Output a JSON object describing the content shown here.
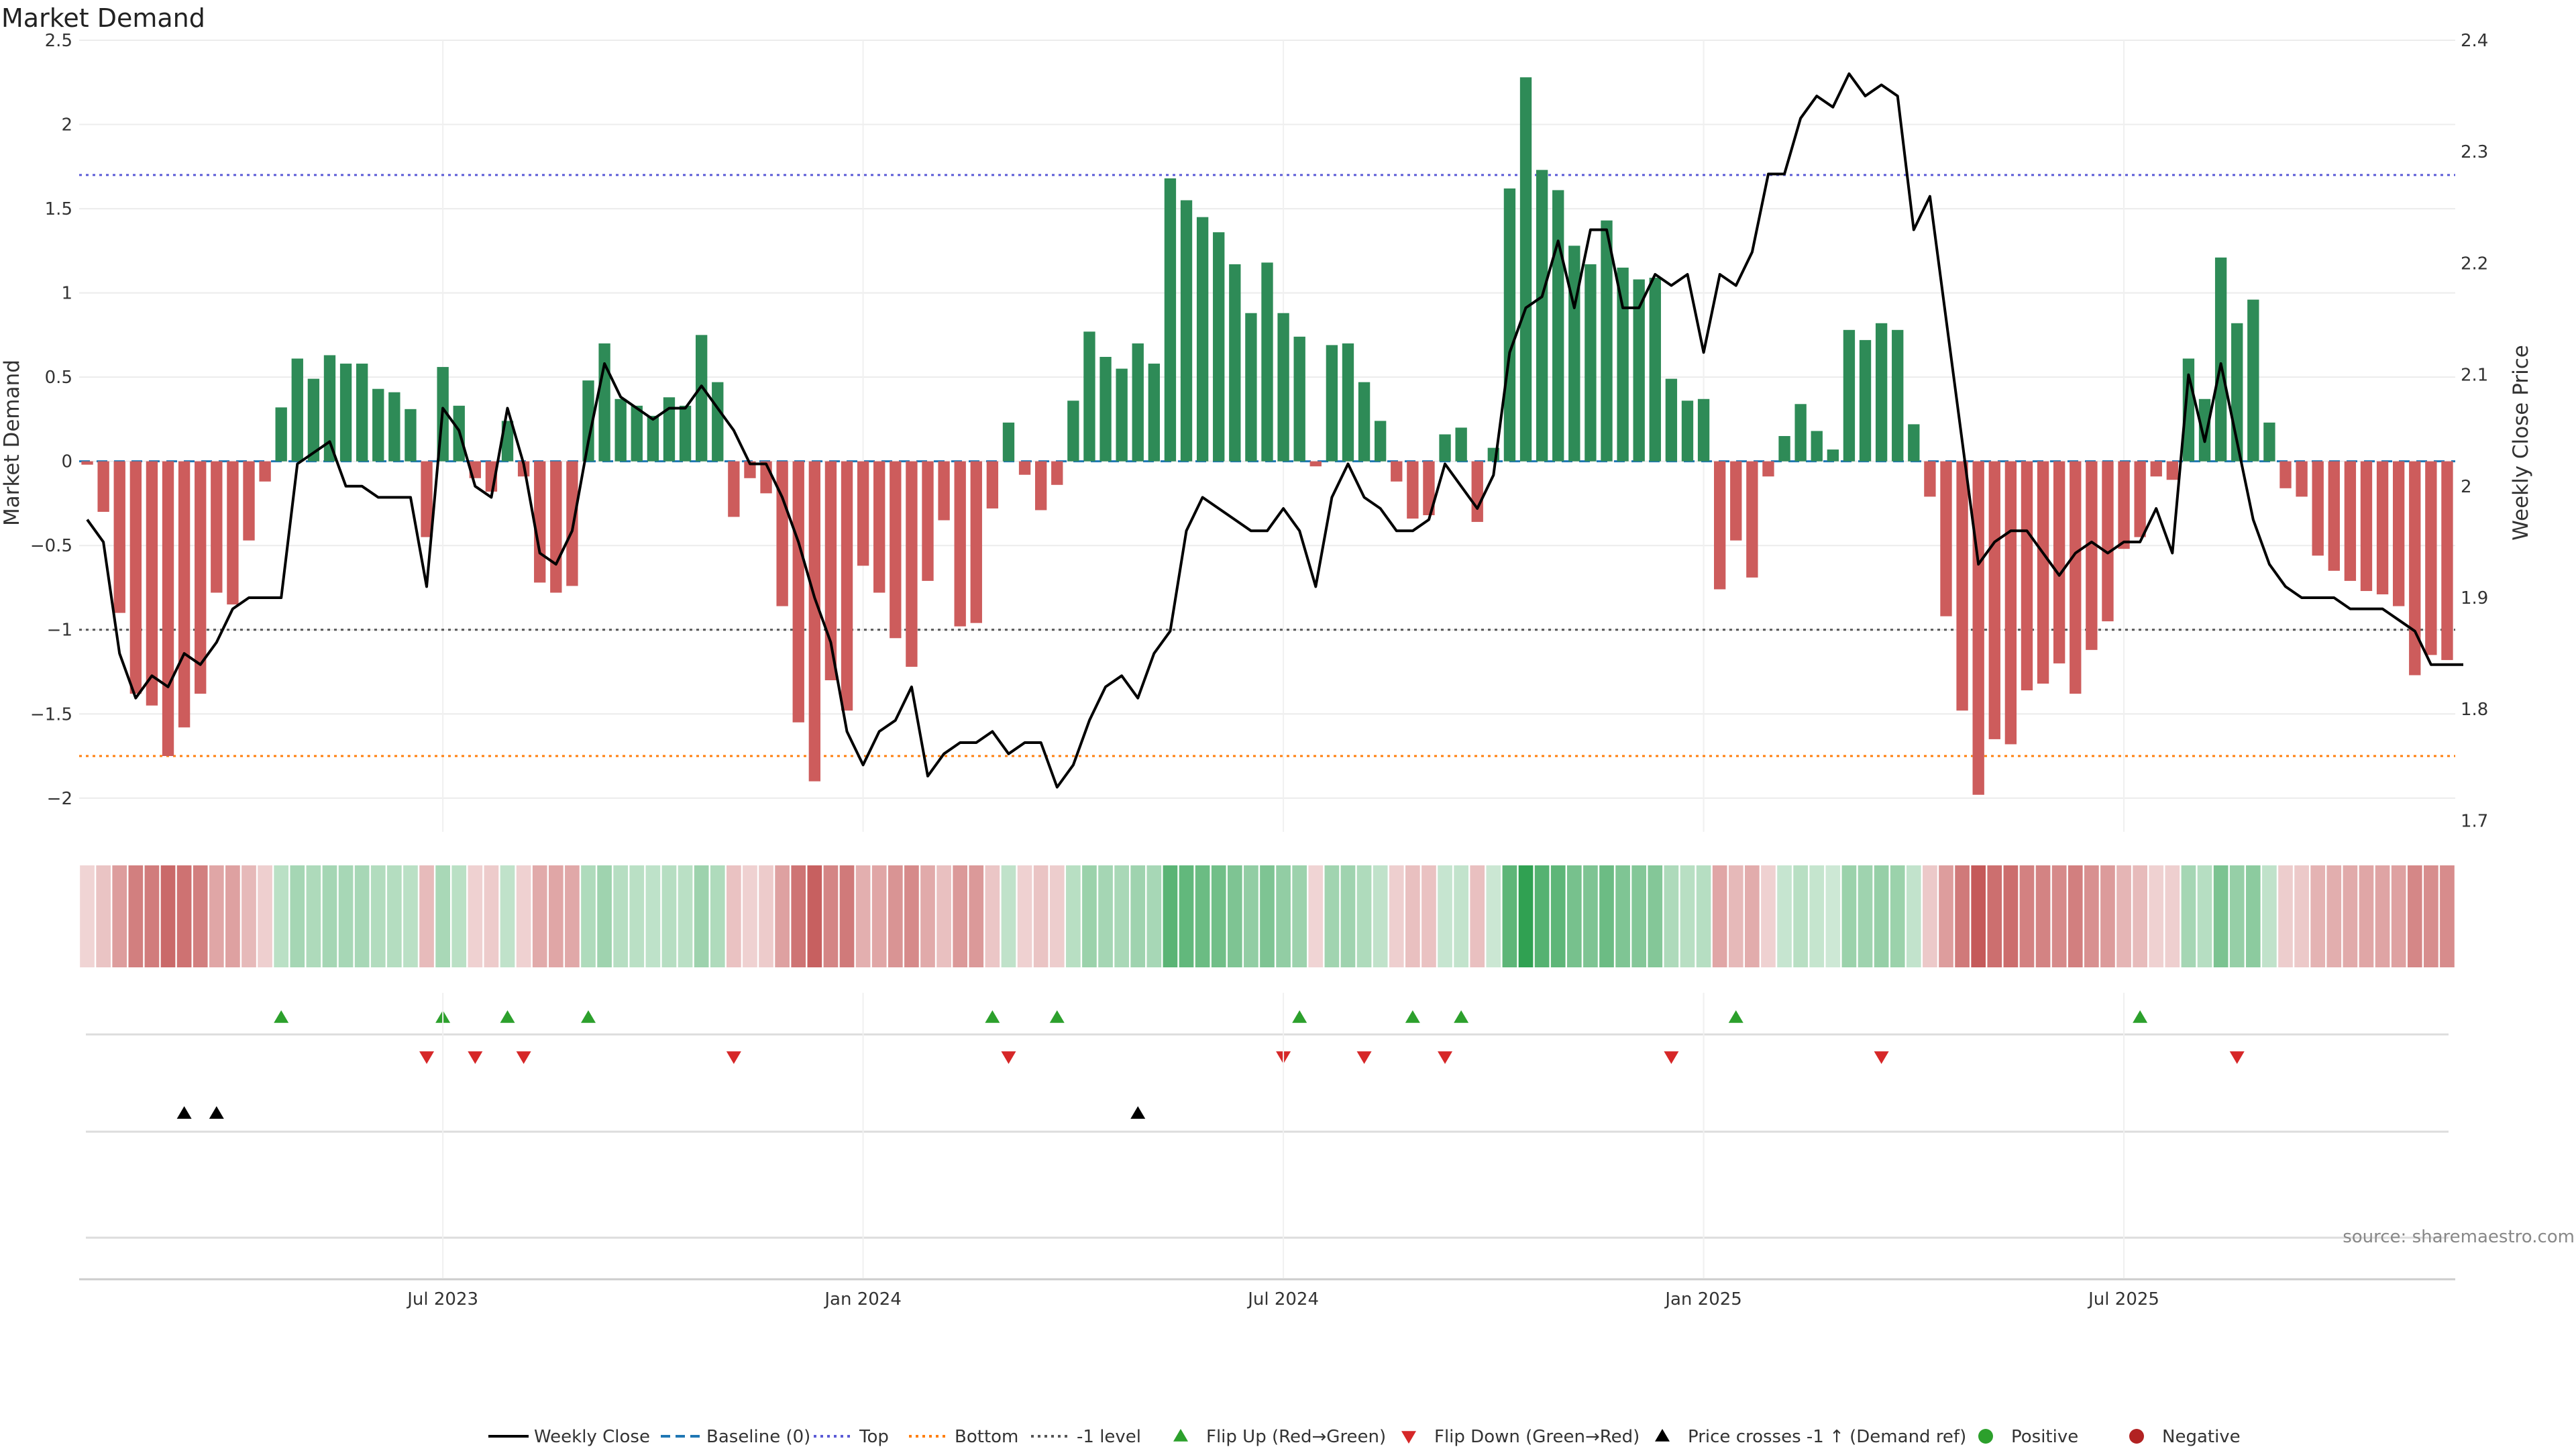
{
  "chart_data": {
    "type": "bar",
    "title": "Market Demand",
    "ylabel": "Market Demand",
    "y2label": "Weekly Close Price",
    "ylim": [
      -2.2,
      2.5
    ],
    "y2lim": [
      1.69,
      2.4
    ],
    "yticks": [
      "2.5",
      "2",
      "1.5",
      "1",
      "0.5",
      "0",
      "−0.5",
      "−1",
      "−1.5",
      "−2"
    ],
    "yticks_values": [
      2.5,
      2,
      1.5,
      1,
      0.5,
      0,
      -0.5,
      -1,
      -1.5,
      -2
    ],
    "y2ticks": [
      "2.4",
      "2.3",
      "2.2",
      "2.1",
      "2",
      "1.9",
      "1.8",
      "1.7"
    ],
    "y2ticks_values": [
      2.4,
      2.3,
      2.2,
      2.1,
      2.0,
      1.9,
      1.8,
      1.7
    ],
    "x_labels": [
      "Jul 2023",
      "Jan 2024",
      "Jul 2024",
      "Jan 2025",
      "Jul 2025"
    ],
    "x_label_weeks": [
      22,
      48,
      74,
      100,
      126
    ],
    "reference_lines": {
      "top": 1.7,
      "bottom": -1.75,
      "minus_one": -1,
      "baseline": 0
    },
    "demand": [
      -0.02,
      -0.3,
      -0.9,
      -1.38,
      -1.45,
      -1.75,
      -1.58,
      -1.38,
      -0.78,
      -0.85,
      -0.47,
      -0.12,
      0.32,
      0.61,
      0.49,
      0.63,
      0.58,
      0.58,
      0.43,
      0.41,
      0.31,
      -0.45,
      0.56,
      0.33,
      -0.1,
      -0.18,
      0.24,
      -0.09,
      -0.72,
      -0.78,
      -0.74,
      0.48,
      0.7,
      0.37,
      0.33,
      0.27,
      0.38,
      0.33,
      0.75,
      0.47,
      -0.33,
      -0.1,
      -0.19,
      -0.86,
      -1.55,
      -1.9,
      -1.3,
      -1.48,
      -0.62,
      -0.78,
      -1.05,
      -1.22,
      -0.71,
      -0.35,
      -0.98,
      -0.96,
      -0.28,
      0.23,
      -0.08,
      -0.29,
      -0.14,
      0.36,
      0.77,
      0.62,
      0.55,
      0.7,
      0.58,
      1.68,
      1.55,
      1.45,
      1.36,
      1.17,
      0.88,
      1.18,
      0.88,
      0.74,
      -0.03,
      0.69,
      0.7,
      0.47,
      0.24,
      -0.12,
      -0.34,
      -0.32,
      0.16,
      0.2,
      -0.36,
      0.08,
      1.62,
      2.28,
      1.73,
      1.61,
      1.28,
      1.17,
      1.43,
      1.15,
      1.08,
      1.09,
      0.49,
      0.36,
      0.37,
      -0.76,
      -0.47,
      -0.69,
      -0.09,
      0.15,
      0.34,
      0.18,
      0.07,
      0.78,
      0.72,
      0.82,
      0.78,
      0.22,
      -0.21,
      -0.92,
      -1.48,
      -1.98,
      -1.65,
      -1.68,
      -1.36,
      -1.32,
      -1.2,
      -1.38,
      -1.12,
      -0.95,
      -0.52,
      -0.45,
      -0.09,
      -0.11,
      0.61,
      0.37,
      1.21,
      0.82,
      0.96,
      0.23,
      -0.16,
      -0.21,
      -0.56,
      -0.65,
      -0.71,
      -0.77,
      -0.79,
      -0.86,
      -1.27,
      -1.15,
      -1.18
    ],
    "series": [
      {
        "name": "Weekly Close",
        "values": [
          1.97,
          1.95,
          1.85,
          1.81,
          1.83,
          1.82,
          1.85,
          1.84,
          1.86,
          1.89,
          1.9,
          1.9,
          1.9,
          2.02,
          2.03,
          2.04,
          2.0,
          2.0,
          1.99,
          1.99,
          1.99,
          1.91,
          2.07,
          2.05,
          2.0,
          1.99,
          2.07,
          2.02,
          1.94,
          1.93,
          1.96,
          2.04,
          2.11,
          2.08,
          2.07,
          2.06,
          2.07,
          2.07,
          2.09,
          2.07,
          2.05,
          2.02,
          2.02,
          1.99,
          1.95,
          1.9,
          1.86,
          1.78,
          1.75,
          1.78,
          1.79,
          1.82,
          1.74,
          1.76,
          1.77,
          1.77,
          1.78,
          1.76,
          1.77,
          1.77,
          1.73,
          1.75,
          1.79,
          1.82,
          1.83,
          1.81,
          1.85,
          1.87,
          1.96,
          1.99,
          1.98,
          1.97,
          1.96,
          1.96,
          1.98,
          1.96,
          1.91,
          1.99,
          2.02,
          1.99,
          1.98,
          1.96,
          1.96,
          1.97,
          2.02,
          2.0,
          1.98,
          2.01,
          2.12,
          2.16,
          2.17,
          2.22,
          2.16,
          2.23,
          2.23,
          2.16,
          2.16,
          2.19,
          2.18,
          2.19,
          2.12,
          2.19,
          2.18,
          2.21,
          2.28,
          2.28,
          2.33,
          2.35,
          2.34,
          2.37,
          2.35,
          2.36,
          2.35,
          2.23,
          2.26,
          2.15,
          2.04,
          1.93,
          1.95,
          1.96,
          1.96,
          1.94,
          1.92,
          1.94,
          1.95,
          1.94,
          1.95,
          1.95,
          1.98,
          1.94,
          2.1,
          2.04,
          2.11,
          2.04,
          1.97,
          1.93,
          1.91,
          1.9,
          1.9,
          1.9,
          1.89,
          1.89,
          1.89,
          1.88,
          1.87,
          1.84,
          1.84,
          1.84
        ]
      }
    ],
    "flip_up_weeks": [
      12,
      22,
      26,
      31,
      56,
      60,
      75,
      82,
      85,
      102,
      127
    ],
    "flip_down_weeks": [
      21,
      24,
      27,
      40,
      57,
      74,
      79,
      84,
      98,
      111,
      133
    ],
    "price_cross_weeks": [
      6,
      8,
      65
    ],
    "legend": [
      {
        "label": "Weekly Close",
        "style": "solid-line",
        "color": "#000000"
      },
      {
        "label": "Baseline (0)",
        "style": "dash-line",
        "color": "#1f77b4"
      },
      {
        "label": "Top",
        "style": "dot-line",
        "color": "#5b5bd6"
      },
      {
        "label": "Bottom",
        "style": "dot-line",
        "color": "#ff7f0e"
      },
      {
        "label": "-1 level",
        "style": "dot-line",
        "color": "#555555"
      },
      {
        "label": "Flip Up (Red→Green)",
        "style": "triangle-up",
        "color": "#2ca02c"
      },
      {
        "label": "Flip Down (Green→Red)",
        "style": "triangle-down",
        "color": "#d62728"
      },
      {
        "label": "Price crosses -1 ↑ (Demand ref)",
        "style": "triangle-up",
        "color": "#000000"
      },
      {
        "label": "Positive",
        "style": "circle",
        "color": "#2ca02c"
      },
      {
        "label": "Negative",
        "style": "circle",
        "color": "#b22222"
      }
    ],
    "colors": {
      "positive_bar": "#2e8b57",
      "negative_bar": "#cd5c5c",
      "price_line": "#000000"
    },
    "grid": true,
    "legend_placement": "bottom"
  },
  "source": "source: sharemaestro.com"
}
